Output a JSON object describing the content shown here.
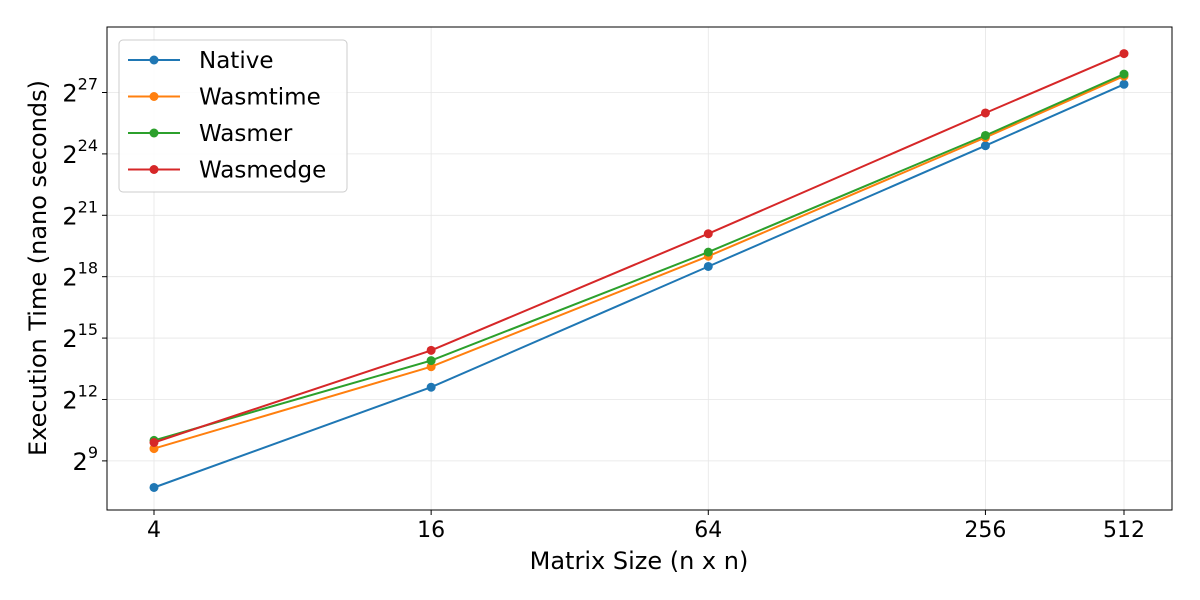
{
  "chart_data": {
    "type": "line",
    "title": "",
    "xlabel": "Matrix Size (n x n)",
    "ylabel": "Execution Time (nano seconds)",
    "x_scale": "log2",
    "y_scale": "log2",
    "x": [
      4,
      16,
      64,
      256,
      512
    ],
    "x_ticks": [
      {
        "value": 4,
        "label": "4"
      },
      {
        "value": 16,
        "label": "16"
      },
      {
        "value": 64,
        "label": "64"
      },
      {
        "value": 256,
        "label": "256"
      },
      {
        "value": 512,
        "label": "512"
      }
    ],
    "y_ticks": [
      {
        "exp": 9,
        "base": "2",
        "sup": "9"
      },
      {
        "exp": 12,
        "base": "2",
        "sup": "12"
      },
      {
        "exp": 15,
        "base": "2",
        "sup": "15"
      },
      {
        "exp": 18,
        "base": "2",
        "sup": "18"
      },
      {
        "exp": 21,
        "base": "2",
        "sup": "21"
      },
      {
        "exp": 24,
        "base": "2",
        "sup": "24"
      },
      {
        "exp": 27,
        "base": "2",
        "sup": "27"
      }
    ],
    "ylim_exp": [
      6.6,
      30.2
    ],
    "grid": true,
    "legend_position": "top-left",
    "series": [
      {
        "name": "Native",
        "color": "#1f77b4",
        "exp": [
          7.7,
          12.6,
          18.5,
          24.4,
          27.4
        ],
        "values": [
          208,
          6208,
          370727,
          22136000,
          177209000
        ]
      },
      {
        "name": "Wasmtime",
        "color": "#ff7f0e",
        "exp": [
          9.6,
          13.6,
          19.0,
          24.8,
          27.8
        ],
        "values": [
          776,
          12417,
          524288,
          29206000,
          233838000
        ]
      },
      {
        "name": "Wasmer",
        "color": "#2ca02c",
        "exp": [
          10.0,
          13.9,
          19.2,
          24.9,
          27.9
        ],
        "values": [
          1024,
          15287,
          602249,
          31302000,
          250617000
        ]
      },
      {
        "name": "Wasmedge",
        "color": "#d62728",
        "exp": [
          9.9,
          14.4,
          20.1,
          26.0,
          28.9
        ],
        "values": [
          955,
          21619,
          1124074,
          67109000,
          501235000
        ]
      }
    ]
  }
}
